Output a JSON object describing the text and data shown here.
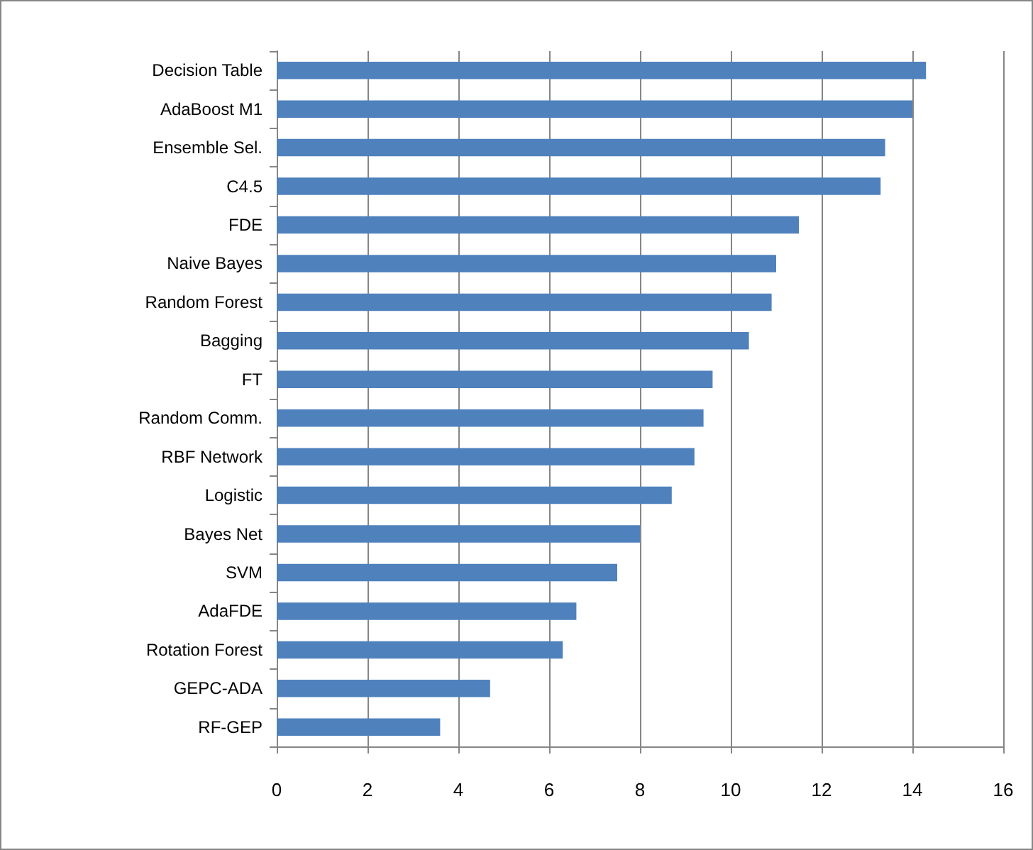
{
  "chart_data": {
    "type": "bar",
    "orientation": "horizontal",
    "categories": [
      "Decision Table",
      "AdaBoost M1",
      "Ensemble Sel.",
      "C4.5",
      "FDE",
      "Naive Bayes",
      "Random Forest",
      "Bagging",
      "FT",
      "Random Comm.",
      "RBF Network",
      "Logistic",
      "Bayes Net",
      "SVM",
      "AdaFDE",
      "Rotation Forest",
      "GEPC-ADA",
      "RF-GEP"
    ],
    "values": [
      14.3,
      14.0,
      13.4,
      13.3,
      11.5,
      11.0,
      10.9,
      10.4,
      9.6,
      9.4,
      9.2,
      8.7,
      8.0,
      7.5,
      6.6,
      6.3,
      4.7,
      3.6
    ],
    "color": "#4f81bd",
    "xlim": [
      0,
      16
    ],
    "xticks": [
      0,
      2,
      4,
      6,
      8,
      10,
      12,
      14,
      16
    ],
    "grid": "x"
  }
}
